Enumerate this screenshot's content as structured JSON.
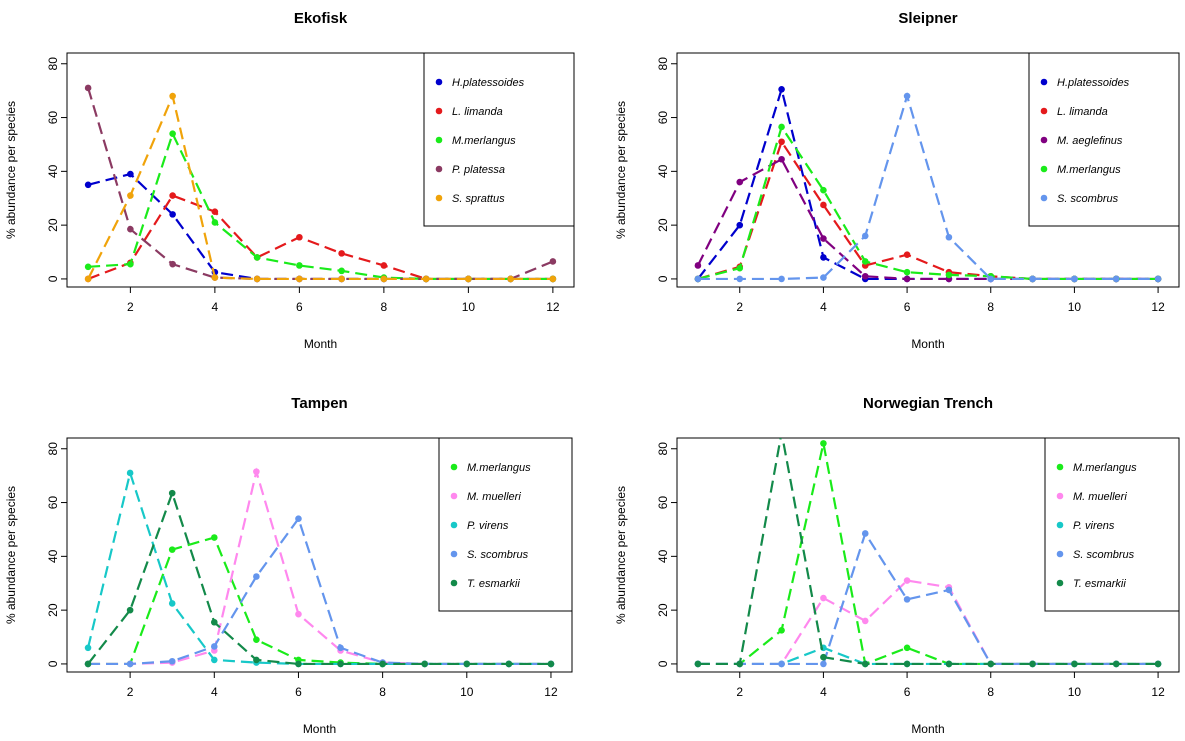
{
  "chart_data": [
    {
      "type": "line",
      "title": "Ekofisk",
      "xlabel": "Month",
      "ylabel": "% abundance per species",
      "x": [
        1,
        2,
        3,
        4,
        5,
        6,
        7,
        8,
        9,
        10,
        11,
        12
      ],
      "xticks": [
        2,
        4,
        6,
        8,
        10,
        12
      ],
      "yticks": [
        0,
        20,
        40,
        60,
        80
      ],
      "xlim": [
        0.5,
        12.5
      ],
      "ylim": [
        -3,
        84
      ],
      "legend_position": "top-right",
      "series": [
        {
          "name": "H.platessoides",
          "color": "#0000cd",
          "values": [
            35,
            39,
            24,
            2.5,
            0,
            0,
            0,
            0,
            0,
            0,
            0,
            0
          ]
        },
        {
          "name": "L. limanda",
          "color": "#e41a1c",
          "values": [
            0,
            6,
            31,
            25,
            8,
            15.5,
            9.5,
            5,
            0,
            0,
            0,
            0
          ]
        },
        {
          "name": "M.merlangus",
          "color": "#1aeb1a",
          "values": [
            4.5,
            5.5,
            54,
            21,
            8,
            5,
            3,
            0.5,
            0,
            0,
            0,
            0
          ]
        },
        {
          "name": "P. platessa",
          "color": "#8b3a62",
          "values": [
            71,
            18.5,
            5.5,
            0.5,
            0,
            0,
            0,
            0,
            0,
            0,
            0,
            6.5
          ]
        },
        {
          "name": "S. sprattus",
          "color": "#f0a30a",
          "values": [
            0,
            31,
            68,
            0.5,
            0,
            0,
            0,
            0,
            0,
            0,
            0,
            0
          ]
        }
      ]
    },
    {
      "type": "line",
      "title": "Sleipner",
      "xlabel": "Month",
      "ylabel": "% abundance per species",
      "x": [
        1,
        2,
        3,
        4,
        5,
        6,
        7,
        8,
        9,
        10,
        11,
        12
      ],
      "xticks": [
        2,
        4,
        6,
        8,
        10,
        12
      ],
      "yticks": [
        0,
        20,
        40,
        60,
        80
      ],
      "xlim": [
        0.5,
        12.5
      ],
      "ylim": [
        -3,
        84
      ],
      "legend_position": "top-right",
      "series": [
        {
          "name": "H.platessoides",
          "color": "#0000cd",
          "values": [
            0,
            20,
            70.5,
            8,
            0,
            0,
            0,
            0,
            0,
            0,
            0,
            0
          ]
        },
        {
          "name": "L. limanda",
          "color": "#e41a1c",
          "values": [
            0,
            4.5,
            51,
            27.5,
            5,
            9,
            2.5,
            1,
            0,
            0,
            0,
            0
          ]
        },
        {
          "name": "M. aeglefinus",
          "color": "#800080",
          "values": [
            5,
            36,
            44.5,
            15,
            1,
            0,
            0,
            0,
            0,
            0,
            0,
            0
          ]
        },
        {
          "name": "M.merlangus",
          "color": "#1aeb1a",
          "values": [
            0,
            4,
            56.5,
            33,
            6.5,
            2.5,
            1.5,
            1,
            0,
            0,
            0,
            0
          ]
        },
        {
          "name": "S. scombrus",
          "color": "#6495ed",
          "values": [
            0,
            0,
            0,
            0.5,
            16,
            68,
            15.5,
            0,
            0,
            0,
            0,
            0
          ]
        }
      ]
    },
    {
      "type": "line",
      "title": "Tampen",
      "xlabel": "Month",
      "ylabel": "% abundance per species",
      "x": [
        1,
        2,
        3,
        4,
        5,
        6,
        7,
        8,
        9,
        10,
        11,
        12
      ],
      "xticks": [
        2,
        4,
        6,
        8,
        10,
        12
      ],
      "yticks": [
        0,
        20,
        40,
        60,
        80
      ],
      "xlim": [
        0.5,
        12.5
      ],
      "ylim": [
        -3,
        84
      ],
      "legend_position": "top-right",
      "series": [
        {
          "name": "M.merlangus",
          "color": "#1aeb1a",
          "values": [
            0,
            0,
            42.5,
            47,
            9,
            1.5,
            0.5,
            0,
            0,
            0,
            0,
            0
          ]
        },
        {
          "name": "M. muelleri",
          "color": "#ff88ee",
          "values": [
            0,
            0,
            0.5,
            5,
            71.5,
            18.5,
            5,
            0.5,
            0,
            0,
            0,
            0
          ]
        },
        {
          "name": "P. virens",
          "color": "#17c8c8",
          "values": [
            6,
            71,
            22.5,
            1.5,
            0.5,
            0,
            0,
            0,
            0,
            0,
            0,
            0
          ]
        },
        {
          "name": "S. scombrus",
          "color": "#6495ed",
          "values": [
            0,
            0,
            1,
            6.5,
            32.5,
            54,
            6,
            0.5,
            0,
            0,
            0,
            0
          ]
        },
        {
          "name": "T. esmarkii",
          "color": "#138a4a",
          "values": [
            0,
            20,
            63.5,
            15.5,
            1.5,
            0,
            0,
            0,
            0,
            0,
            0,
            0
          ]
        }
      ]
    },
    {
      "type": "line",
      "title": "Norwegian Trench",
      "xlabel": "Month",
      "ylabel": "% abundance per species",
      "x": [
        1,
        2,
        3,
        4,
        5,
        6,
        7,
        8,
        9,
        10,
        11,
        12
      ],
      "xticks": [
        2,
        4,
        6,
        8,
        10,
        12
      ],
      "yticks": [
        0,
        20,
        40,
        60,
        80
      ],
      "xlim": [
        0.5,
        12.5
      ],
      "ylim": [
        -3,
        84
      ],
      "legend_position": "top-right",
      "series": [
        {
          "name": "M.merlangus",
          "color": "#1aeb1a",
          "values": [
            0,
            0,
            12.5,
            82,
            0,
            6,
            0,
            0,
            0,
            0,
            0,
            0
          ]
        },
        {
          "name": "M. muelleri",
          "color": "#ff88ee",
          "values": [
            0,
            0,
            0,
            24.5,
            16,
            31,
            28.5,
            0,
            0,
            0,
            0,
            0
          ]
        },
        {
          "name": "P. virens",
          "color": "#17c8c8",
          "values": [
            0,
            0,
            0,
            6,
            0,
            0,
            0,
            0,
            0,
            0,
            0,
            0
          ]
        },
        {
          "name": "S. scombrus",
          "color": "#6495ed",
          "values": [
            0,
            0,
            0,
            0,
            48.5,
            24,
            27.5,
            0,
            0,
            0,
            0,
            0
          ]
        },
        {
          "name": "T. esmarkii",
          "color": "#138a4a",
          "values": [
            0,
            0,
            86,
            2.5,
            0,
            0,
            0,
            0,
            0,
            0,
            0,
            0
          ]
        }
      ]
    }
  ]
}
